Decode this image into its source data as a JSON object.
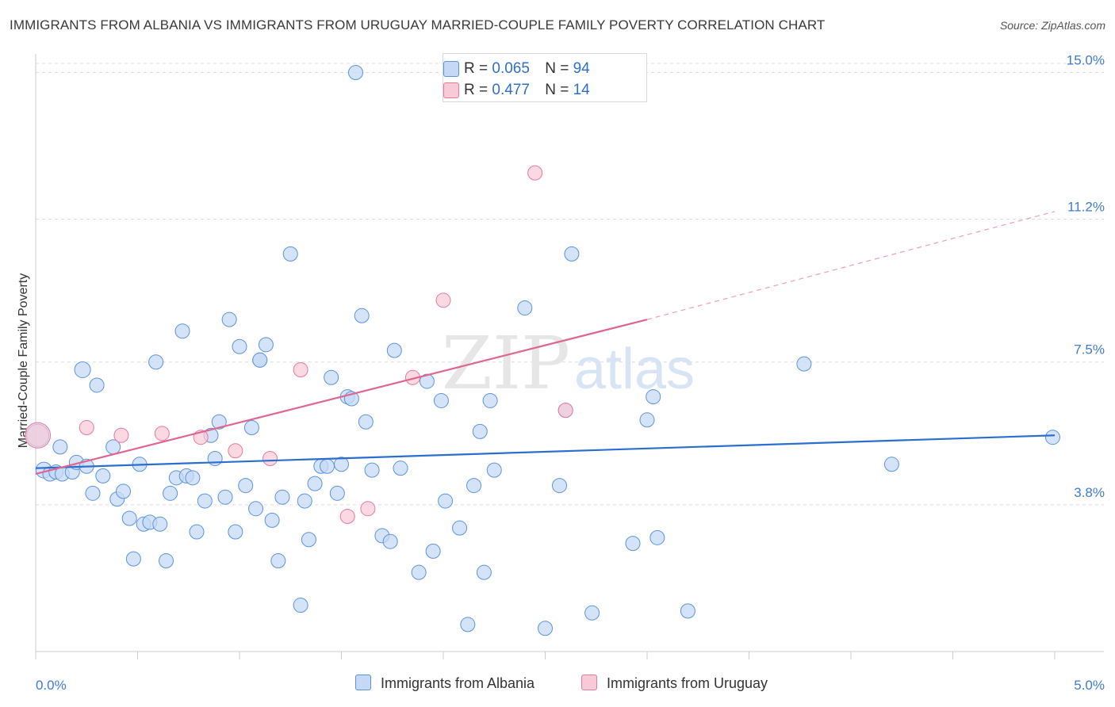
{
  "title": "IMMIGRANTS FROM ALBANIA VS IMMIGRANTS FROM URUGUAY MARRIED-COUPLE FAMILY POVERTY CORRELATION CHART",
  "source": "Source: ZipAtlas.com",
  "watermark": {
    "zip": "ZIP",
    "atlas": "atlas"
  },
  "legend_top": {
    "rows": [
      {
        "r_label": "R =",
        "r_value": "0.065",
        "n_label": "N =",
        "n_value": "94"
      },
      {
        "r_label": "R =",
        "r_value": "0.477",
        "n_label": "N =",
        "n_value": "14"
      }
    ]
  },
  "chart_data": {
    "type": "scatter",
    "title": "IMMIGRANTS FROM ALBANIA VS IMMIGRANTS FROM URUGUAY MARRIED-COUPLE FAMILY POVERTY CORRELATION CHART",
    "xlabel": "",
    "ylabel": "Married-Couple Family Poverty",
    "xlim": [
      0,
      5.0
    ],
    "ylim": [
      0,
      15.4
    ],
    "x_tick_labels": [
      "0.0%",
      "5.0%"
    ],
    "y_ticks": [
      3.8,
      7.5,
      11.2,
      15.0
    ],
    "y_tick_labels": [
      "3.8%",
      "7.5%",
      "11.2%",
      "15.0%"
    ],
    "grid": true,
    "legend_position": "bottom",
    "colors": {
      "albania": "#5b93e0",
      "albania_fill": "#c5d9f4",
      "uruguay": "#e67a9c",
      "uruguay_fill": "#f8c9d7",
      "axis_text": "#3f7bd1"
    },
    "series": [
      {
        "name": "Immigrants from Albania",
        "r": 0.065,
        "n": 94,
        "trend": {
          "x": [
            0,
            5.0
          ],
          "y": [
            4.75,
            5.6
          ]
        },
        "points": [
          [
            0.01,
            5.6,
            14
          ],
          [
            0.04,
            4.7,
            10
          ],
          [
            0.07,
            4.6,
            9
          ],
          [
            0.1,
            4.65,
            9
          ],
          [
            0.13,
            4.6,
            9
          ],
          [
            0.18,
            4.65,
            9
          ],
          [
            0.12,
            5.3,
            9
          ],
          [
            0.2,
            4.9,
            9
          ],
          [
            0.25,
            4.8,
            9
          ],
          [
            0.23,
            7.3,
            10
          ],
          [
            0.3,
            6.9,
            9
          ],
          [
            0.28,
            4.1,
            9
          ],
          [
            0.33,
            4.55,
            9
          ],
          [
            0.38,
            5.3,
            9
          ],
          [
            0.4,
            3.95,
            9
          ],
          [
            0.43,
            4.15,
            9
          ],
          [
            0.46,
            3.45,
            9
          ],
          [
            0.48,
            2.4,
            9
          ],
          [
            0.51,
            4.85,
            9
          ],
          [
            0.53,
            3.3,
            9
          ],
          [
            0.56,
            3.35,
            9
          ],
          [
            0.59,
            7.5,
            9
          ],
          [
            0.61,
            3.3,
            9
          ],
          [
            0.64,
            2.35,
            9
          ],
          [
            0.66,
            4.1,
            9
          ],
          [
            0.69,
            4.5,
            9
          ],
          [
            0.72,
            8.3,
            9
          ],
          [
            0.74,
            4.55,
            9
          ],
          [
            0.77,
            4.5,
            9
          ],
          [
            0.79,
            3.1,
            9
          ],
          [
            0.83,
            3.9,
            9
          ],
          [
            0.86,
            5.6,
            9
          ],
          [
            0.88,
            5.0,
            9
          ],
          [
            0.9,
            5.95,
            9
          ],
          [
            0.93,
            4.0,
            9
          ],
          [
            0.95,
            8.6,
            9
          ],
          [
            0.98,
            3.1,
            9
          ],
          [
            1.0,
            7.9,
            9
          ],
          [
            1.03,
            4.3,
            9
          ],
          [
            1.06,
            5.8,
            9
          ],
          [
            1.08,
            3.7,
            9
          ],
          [
            1.1,
            7.55,
            9
          ],
          [
            1.13,
            7.95,
            9
          ],
          [
            1.16,
            3.4,
            9
          ],
          [
            1.19,
            2.35,
            9
          ],
          [
            1.21,
            4.0,
            9
          ],
          [
            1.25,
            10.3,
            9
          ],
          [
            1.3,
            1.2,
            9
          ],
          [
            1.32,
            3.9,
            9
          ],
          [
            1.34,
            2.9,
            9
          ],
          [
            1.37,
            4.35,
            9
          ],
          [
            1.4,
            4.8,
            9
          ],
          [
            1.43,
            4.8,
            9
          ],
          [
            1.45,
            7.1,
            9
          ],
          [
            1.48,
            4.1,
            9
          ],
          [
            1.5,
            4.85,
            9
          ],
          [
            1.53,
            6.6,
            9
          ],
          [
            1.55,
            6.55,
            9
          ],
          [
            1.57,
            15.0,
            9
          ],
          [
            1.6,
            8.7,
            9
          ],
          [
            1.62,
            5.95,
            9
          ],
          [
            1.65,
            4.7,
            9
          ],
          [
            1.7,
            3.0,
            9
          ],
          [
            1.74,
            2.85,
            9
          ],
          [
            1.76,
            7.8,
            9
          ],
          [
            1.79,
            4.75,
            9
          ],
          [
            1.88,
            2.05,
            9
          ],
          [
            1.92,
            7.0,
            9
          ],
          [
            1.95,
            2.6,
            9
          ],
          [
            1.99,
            6.5,
            9
          ],
          [
            2.01,
            3.9,
            9
          ],
          [
            2.08,
            3.2,
            9
          ],
          [
            2.12,
            0.7,
            9
          ],
          [
            2.15,
            4.3,
            9
          ],
          [
            2.18,
            5.7,
            9
          ],
          [
            2.2,
            2.05,
            9
          ],
          [
            2.23,
            6.5,
            9
          ],
          [
            2.25,
            4.7,
            9
          ],
          [
            2.4,
            8.9,
            9
          ],
          [
            2.5,
            0.6,
            9
          ],
          [
            2.57,
            4.3,
            9
          ],
          [
            2.58,
            14.75,
            9
          ],
          [
            2.63,
            10.3,
            9
          ],
          [
            2.6,
            6.25,
            9
          ],
          [
            2.73,
            1.0,
            9
          ],
          [
            2.93,
            2.8,
            9
          ],
          [
            3.0,
            6.0,
            9
          ],
          [
            3.03,
            6.6,
            9
          ],
          [
            3.05,
            2.95,
            9
          ],
          [
            3.2,
            1.05,
            9
          ],
          [
            3.77,
            7.45,
            9
          ],
          [
            4.2,
            4.85,
            9
          ],
          [
            4.99,
            5.55,
            9
          ],
          [
            1.1,
            7.55,
            9
          ]
        ]
      },
      {
        "name": "Immigrants from Uruguay",
        "r": 0.477,
        "n": 14,
        "trend": {
          "x": [
            0,
            3.0
          ],
          "y": [
            4.6,
            8.6
          ]
        },
        "trend_dashed": {
          "x": [
            3.0,
            5.0
          ],
          "y": [
            8.6,
            11.4
          ]
        },
        "points": [
          [
            0.01,
            5.6,
            16
          ],
          [
            0.25,
            5.8,
            9
          ],
          [
            0.42,
            5.6,
            9
          ],
          [
            0.62,
            5.65,
            9
          ],
          [
            0.81,
            5.55,
            9
          ],
          [
            0.98,
            5.2,
            9
          ],
          [
            1.15,
            5.0,
            9
          ],
          [
            1.3,
            7.3,
            9
          ],
          [
            1.53,
            3.5,
            9
          ],
          [
            1.63,
            3.7,
            9
          ],
          [
            1.85,
            7.1,
            9
          ],
          [
            2.0,
            9.1,
            9
          ],
          [
            2.45,
            12.4,
            9
          ],
          [
            2.6,
            6.25,
            9
          ]
        ]
      }
    ]
  },
  "legend_bottom": [
    {
      "label": "Immigrants from Albania"
    },
    {
      "label": "Immigrants from Uruguay"
    }
  ]
}
